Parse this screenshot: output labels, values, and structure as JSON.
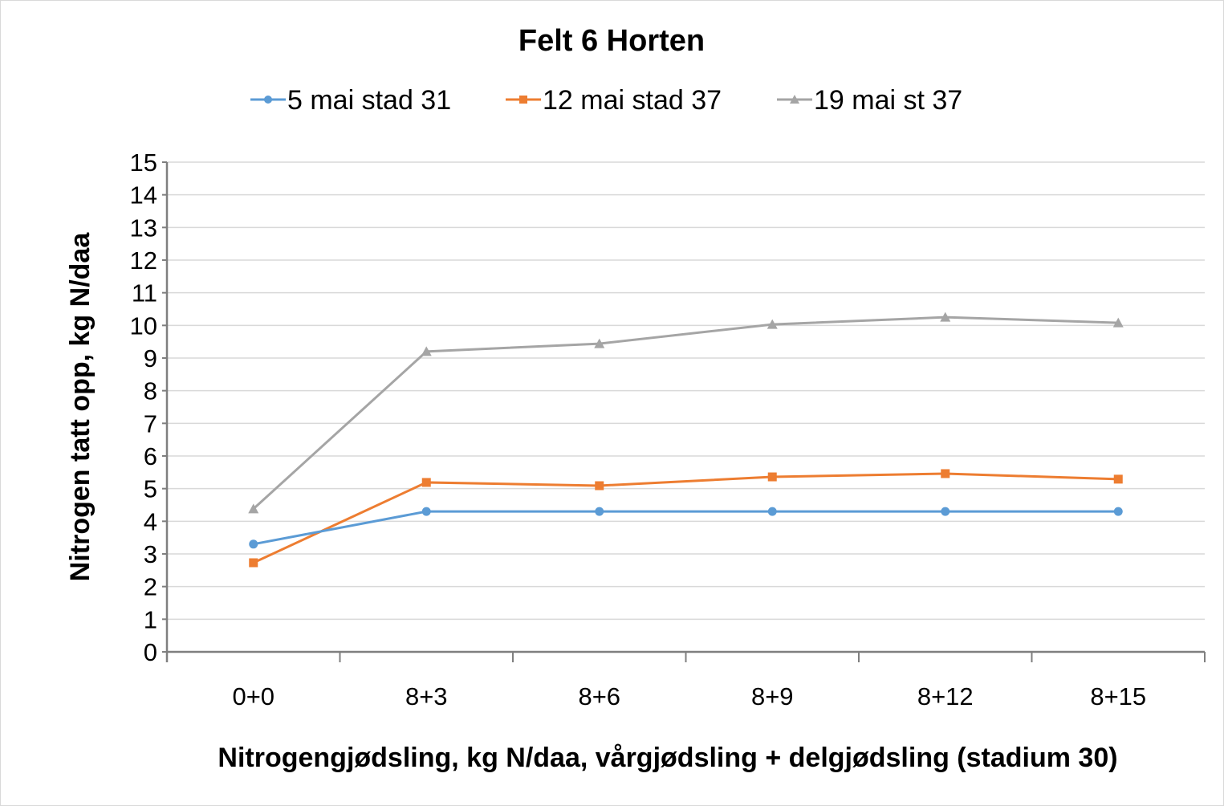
{
  "chart_data": {
    "type": "line",
    "title": "Felt 6 Horten",
    "xlabel": "Nitrogengjødsling, kg N/daa, vårgjødsling + delgjødsling (stadium 30)",
    "ylabel": "Nitrogen tatt opp, kg N/daa",
    "categories": [
      "0+0",
      "8+3",
      "8+6",
      "8+9",
      "8+12",
      "8+15"
    ],
    "ylim": [
      0,
      15
    ],
    "yticks": [
      "0",
      "1",
      "2",
      "3",
      "4",
      "5",
      "6",
      "7",
      "8",
      "9",
      "10",
      "11",
      "12",
      "13",
      "14",
      "15"
    ],
    "grid": true,
    "legend": "top",
    "series": [
      {
        "name": "5 mai stad 31",
        "color": "#5b9bd5",
        "marker": "circle",
        "values": [
          3.3,
          4.3,
          4.3,
          4.3,
          4.3,
          4.3
        ]
      },
      {
        "name": "12 mai stad 37",
        "color": "#ed7d31",
        "marker": "square",
        "values": [
          2.73,
          5.19,
          5.09,
          5.36,
          5.46,
          5.29
        ]
      },
      {
        "name": "19 mai st 37",
        "color": "#a5a5a5",
        "marker": "triangle",
        "values": [
          4.38,
          9.2,
          9.44,
          10.03,
          10.25,
          10.08
        ]
      }
    ]
  }
}
